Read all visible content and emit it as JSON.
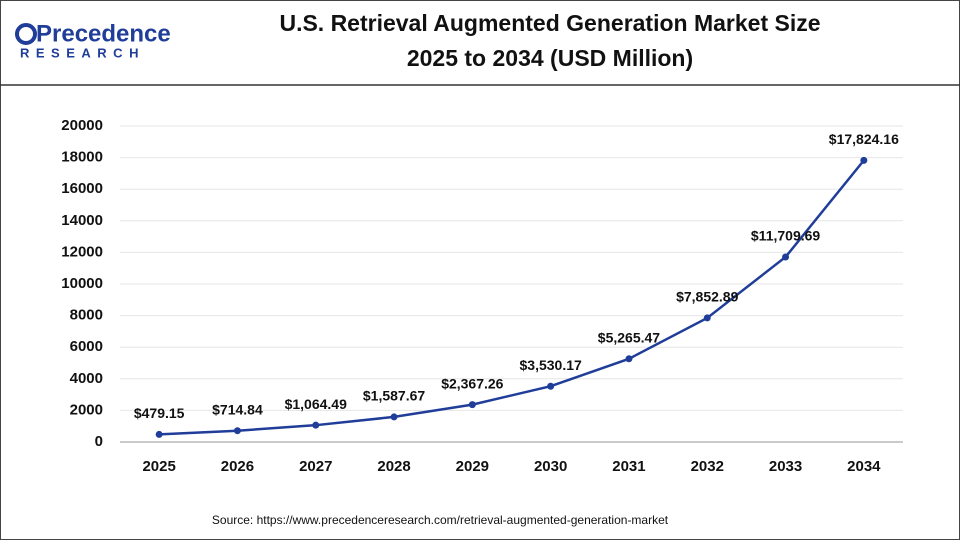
{
  "brand": {
    "name": "Precedence",
    "sub": "RESEARCH"
  },
  "chart_data": {
    "type": "line",
    "title": "U.S. Retrieval Augmented Generation Market Size",
    "subtitle": "2025 to 2034 (USD Million)",
    "categories": [
      "2025",
      "2026",
      "2027",
      "2028",
      "2029",
      "2030",
      "2031",
      "2032",
      "2033",
      "2034"
    ],
    "values": [
      479.15,
      714.84,
      1064.49,
      1587.67,
      2367.26,
      3530.17,
      5265.47,
      7852.89,
      11709.69,
      17824.16
    ],
    "value_labels": [
      "$479.15",
      "$714.84",
      "$1,064.49",
      "$1,587.67",
      "$2,367.26",
      "$3,530.17",
      "$5,265.47",
      "$7,852.89",
      "$11,709.69",
      "$17,824.16"
    ],
    "color": "#1f3d99",
    "ylim": [
      0,
      20000
    ],
    "yticks": [
      0,
      2000,
      4000,
      6000,
      8000,
      10000,
      12000,
      14000,
      16000,
      18000,
      20000
    ],
    "grid": true,
    "source": "Source: https://www.precedenceresearch.com/retrieval-augmented-generation-market"
  }
}
